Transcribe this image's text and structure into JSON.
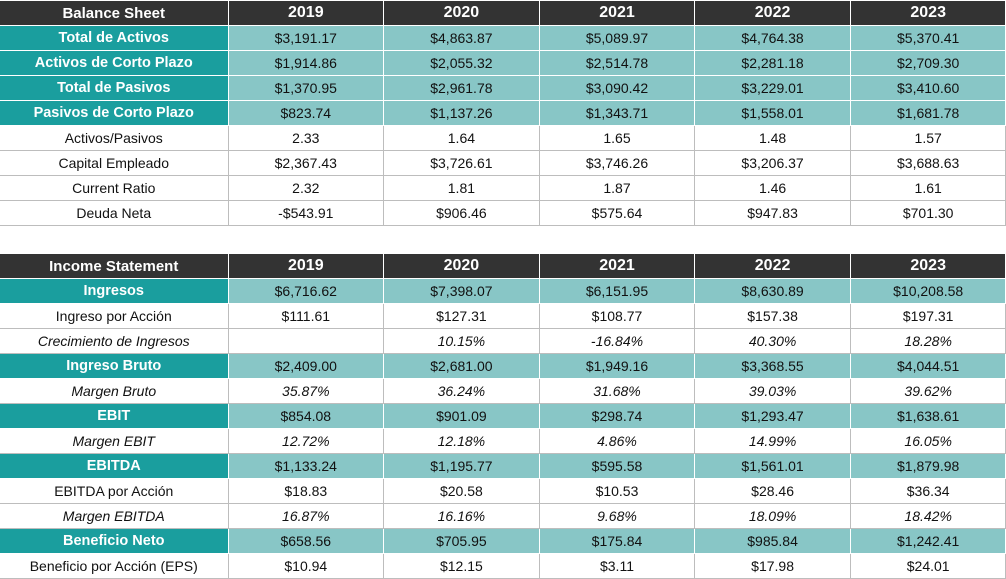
{
  "balance_sheet": {
    "header": [
      "Balance Sheet",
      "2019",
      "2020",
      "2021",
      "2022",
      "2023"
    ],
    "rows": [
      {
        "style": "highlight",
        "italic": false,
        "cells": [
          "Total de Activos",
          "$3,191.17",
          "$4,863.87",
          "$5,089.97",
          "$4,764.38",
          "$5,370.41"
        ]
      },
      {
        "style": "highlight",
        "italic": false,
        "cells": [
          "Activos de Corto Plazo",
          "$1,914.86",
          "$2,055.32",
          "$2,514.78",
          "$2,281.18",
          "$2,709.30"
        ]
      },
      {
        "style": "highlight",
        "italic": false,
        "cells": [
          "Total de Pasivos",
          "$1,370.95",
          "$2,961.78",
          "$3,090.42",
          "$3,229.01",
          "$3,410.60"
        ]
      },
      {
        "style": "highlight",
        "italic": false,
        "cells": [
          "Pasivos de Corto Plazo",
          "$823.74",
          "$1,137.26",
          "$1,343.71",
          "$1,558.01",
          "$1,681.78"
        ]
      },
      {
        "style": "plain",
        "italic": false,
        "cells": [
          "Activos/Pasivos",
          "2.33",
          "1.64",
          "1.65",
          "1.48",
          "1.57"
        ]
      },
      {
        "style": "plain",
        "italic": false,
        "cells": [
          "Capital Empleado",
          "$2,367.43",
          "$3,726.61",
          "$3,746.26",
          "$3,206.37",
          "$3,688.63"
        ]
      },
      {
        "style": "plain",
        "italic": false,
        "cells": [
          "Current Ratio",
          "2.32",
          "1.81",
          "1.87",
          "1.46",
          "1.61"
        ]
      },
      {
        "style": "plain",
        "italic": false,
        "cells": [
          "Deuda Neta",
          "-$543.91",
          "$906.46",
          "$575.64",
          "$947.83",
          "$701.30"
        ]
      }
    ]
  },
  "income_statement": {
    "header": [
      "Income Statement",
      "2019",
      "2020",
      "2021",
      "2022",
      "2023"
    ],
    "rows": [
      {
        "style": "highlight",
        "italic": false,
        "cells": [
          "Ingresos",
          "$6,716.62",
          "$7,398.07",
          "$6,151.95",
          "$8,630.89",
          "$10,208.58"
        ]
      },
      {
        "style": "plain",
        "italic": false,
        "cells": [
          "Ingreso por Acción",
          "$111.61",
          "$127.31",
          "$108.77",
          "$157.38",
          "$197.31"
        ]
      },
      {
        "style": "plain",
        "italic": true,
        "cells": [
          "Crecimiento de Ingresos",
          "",
          "10.15%",
          "-16.84%",
          "40.30%",
          "18.28%"
        ]
      },
      {
        "style": "highlight",
        "italic": false,
        "cells": [
          "Ingreso Bruto",
          "$2,409.00",
          "$2,681.00",
          "$1,949.16",
          "$3,368.55",
          "$4,044.51"
        ]
      },
      {
        "style": "plain",
        "italic": true,
        "cells": [
          "Margen Bruto",
          "35.87%",
          "36.24%",
          "31.68%",
          "39.03%",
          "39.62%"
        ]
      },
      {
        "style": "highlight",
        "italic": false,
        "cells": [
          "EBIT",
          "$854.08",
          "$901.09",
          "$298.74",
          "$1,293.47",
          "$1,638.61"
        ]
      },
      {
        "style": "plain",
        "italic": true,
        "cells": [
          "Margen EBIT",
          "12.72%",
          "12.18%",
          "4.86%",
          "14.99%",
          "16.05%"
        ]
      },
      {
        "style": "highlight",
        "italic": false,
        "cells": [
          "EBITDA",
          "$1,133.24",
          "$1,195.77",
          "$595.58",
          "$1,561.01",
          "$1,879.98"
        ]
      },
      {
        "style": "plain",
        "italic": false,
        "cells": [
          "EBITDA por Acción",
          "$18.83",
          "$20.58",
          "$10.53",
          "$28.46",
          "$36.34"
        ]
      },
      {
        "style": "plain",
        "italic": true,
        "cells": [
          "Margen EBITDA",
          "16.87%",
          "16.16%",
          "9.68%",
          "18.09%",
          "18.42%"
        ]
      },
      {
        "style": "highlight",
        "italic": false,
        "cells": [
          "Beneficio Neto",
          "$658.56",
          "$705.95",
          "$175.84",
          "$985.84",
          "$1,242.41"
        ]
      },
      {
        "style": "plain",
        "italic": false,
        "cells": [
          "Beneficio por Acción (EPS)",
          "$10.94",
          "$12.15",
          "$3.11",
          "$17.98",
          "$24.01"
        ]
      }
    ]
  },
  "colors": {
    "header_bg": "#333333",
    "label_highlight_bg": "#1a9e9e",
    "value_highlight_bg": "#88c6c6",
    "plain_bg": "#ffffff"
  }
}
